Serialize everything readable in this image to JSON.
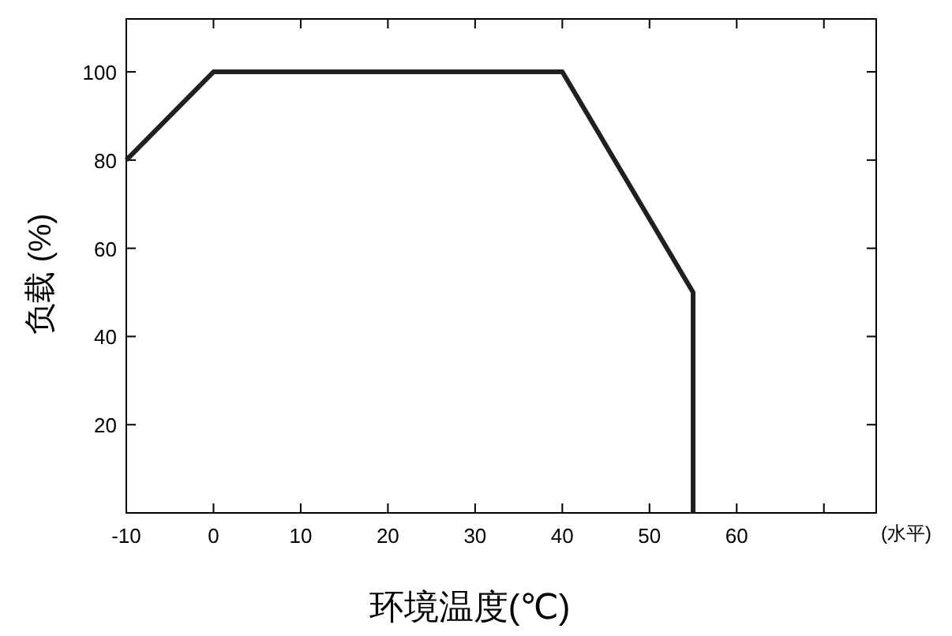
{
  "chart_data": {
    "type": "line",
    "xlabel": "环境温度(℃)",
    "ylabel": "负载 (%)",
    "annotations": [
      "(水平)"
    ],
    "x": [
      -10,
      0,
      40,
      55,
      55
    ],
    "series": [
      {
        "color": "#231f20",
        "values": [
          80,
          100,
          100,
          50,
          0
        ]
      }
    ],
    "xlim": [
      -10,
      76
    ],
    "xticks": [
      -10,
      0,
      10,
      20,
      30,
      40,
      50,
      60,
      {
        "value": 70,
        "label": null
      }
    ],
    "ylim": [
      0,
      112
    ],
    "yticks": [
      20,
      40,
      60,
      80,
      100
    ],
    "grid": false,
    "marker": "none",
    "line_style": "solid"
  }
}
